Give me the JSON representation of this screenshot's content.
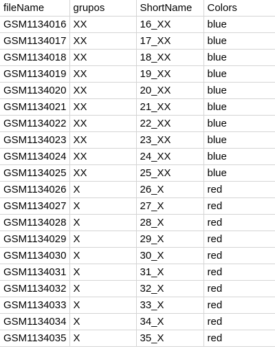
{
  "headers": [
    "fileName",
    "grupos",
    "ShortName",
    "Colors"
  ],
  "rows": [
    [
      "GSM1134016",
      "XX",
      "16_XX",
      "blue"
    ],
    [
      "GSM1134017",
      "XX",
      "17_XX",
      "blue"
    ],
    [
      "GSM1134018",
      "XX",
      "18_XX",
      "blue"
    ],
    [
      "GSM1134019",
      "XX",
      "19_XX",
      "blue"
    ],
    [
      "GSM1134020",
      "XX",
      "20_XX",
      "blue"
    ],
    [
      "GSM1134021",
      "XX",
      "21_XX",
      "blue"
    ],
    [
      "GSM1134022",
      "XX",
      "22_XX",
      "blue"
    ],
    [
      "GSM1134023",
      "XX",
      "23_XX",
      "blue"
    ],
    [
      "GSM1134024",
      "XX",
      "24_XX",
      "blue"
    ],
    [
      "GSM1134025",
      "XX",
      "25_XX",
      "blue"
    ],
    [
      "GSM1134026",
      "X",
      "26_X",
      "red"
    ],
    [
      "GSM1134027",
      "X",
      "27_X",
      "red"
    ],
    [
      "GSM1134028",
      "X",
      "28_X",
      "red"
    ],
    [
      "GSM1134029",
      "X",
      "29_X",
      "red"
    ],
    [
      "GSM1134030",
      "X",
      "30_X",
      "red"
    ],
    [
      "GSM1134031",
      "X",
      "31_X",
      "red"
    ],
    [
      "GSM1134032",
      "X",
      "32_X",
      "red"
    ],
    [
      "GSM1134033",
      "X",
      "33_X",
      "red"
    ],
    [
      "GSM1134034",
      "X",
      "34_X",
      "red"
    ],
    [
      "GSM1134035",
      "X",
      "35_X",
      "red"
    ]
  ]
}
